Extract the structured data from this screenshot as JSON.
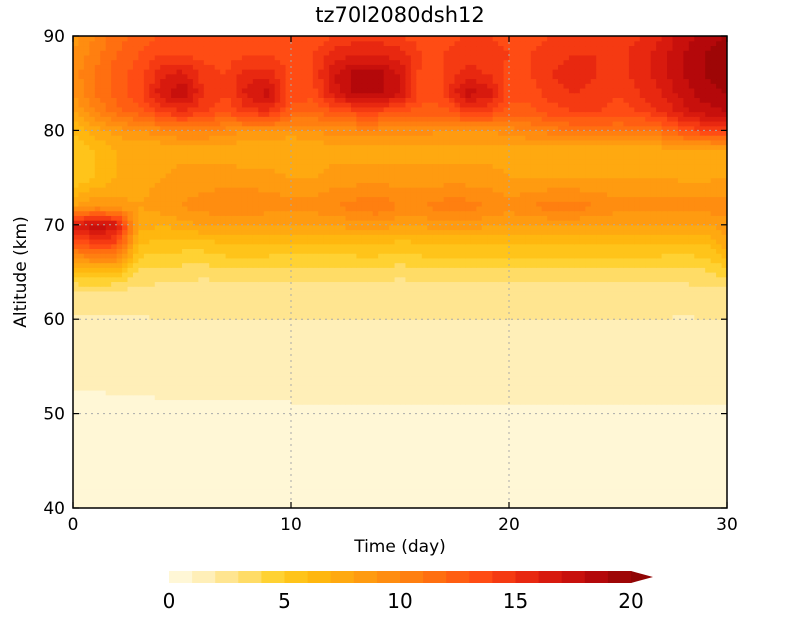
{
  "chart_data": {
    "type": "heatmap",
    "title": "tz70l2080dsh12",
    "xlabel": "Time (day)",
    "ylabel": "Altitude (km)",
    "xlim": [
      0,
      30
    ],
    "ylim": [
      40,
      90
    ],
    "xticks": [
      0,
      10,
      20,
      30
    ],
    "yticks": [
      40,
      50,
      60,
      70,
      80,
      90
    ],
    "grid": true,
    "time_days": [
      0,
      1,
      2,
      3,
      4,
      5,
      6,
      7,
      8,
      9,
      10,
      11,
      12,
      13,
      14,
      15,
      16,
      17,
      18,
      19,
      20,
      21,
      22,
      23,
      24,
      25,
      26,
      27,
      28,
      29,
      30
    ],
    "altitude_km": [
      40,
      45,
      50,
      55,
      60,
      63,
      65,
      68,
      70,
      72,
      75,
      78,
      80,
      82,
      84,
      86,
      88,
      90
    ],
    "values": [
      [
        0.5,
        0.5,
        0.5,
        0.5,
        0.5,
        0.5,
        0.5,
        0.5,
        0.5,
        0.5,
        0.5,
        0.5,
        0.5,
        0.5,
        0.5,
        0.5,
        0.5,
        0.5,
        0.5,
        0.5,
        0.5,
        0.5,
        0.5,
        0.5,
        0.5,
        0.5,
        0.5,
        0.5,
        0.5,
        0.5,
        0.5
      ],
      [
        0.6,
        0.6,
        0.6,
        0.6,
        0.6,
        0.6,
        0.6,
        0.6,
        0.6,
        0.6,
        0.6,
        0.6,
        0.6,
        0.6,
        0.6,
        0.6,
        0.6,
        0.6,
        0.6,
        0.6,
        0.6,
        0.6,
        0.6,
        0.6,
        0.6,
        0.6,
        0.6,
        0.6,
        0.6,
        0.6,
        0.6
      ],
      [
        0.8,
        0.8,
        0.8,
        0.8,
        0.8,
        0.8,
        0.8,
        0.8,
        0.8,
        0.8,
        0.8,
        0.8,
        0.8,
        0.8,
        0.8,
        0.8,
        0.8,
        0.8,
        0.8,
        0.8,
        0.8,
        0.8,
        0.8,
        0.8,
        0.8,
        0.8,
        0.8,
        0.8,
        0.8,
        0.8,
        0.8
      ],
      [
        1.2,
        1.2,
        1.3,
        1.3,
        1.4,
        1.4,
        1.5,
        1.4,
        1.4,
        1.4,
        1.6,
        1.6,
        1.6,
        1.6,
        1.6,
        1.6,
        1.6,
        1.6,
        1.6,
        1.6,
        1.7,
        1.7,
        1.7,
        1.7,
        1.6,
        1.6,
        1.7,
        1.7,
        1.7,
        1.7,
        1.7
      ],
      [
        1.8,
        1.8,
        1.9,
        1.9,
        2.0,
        2.0,
        2.0,
        2.0,
        2.0,
        2.0,
        2.0,
        2.0,
        2.0,
        2.0,
        2.0,
        2.0,
        2.0,
        2.0,
        2.0,
        2.0,
        2.0,
        2.0,
        2.0,
        2.0,
        2.0,
        2.0,
        2.0,
        2.0,
        1.9,
        2.0,
        2.0
      ],
      [
        3.0,
        3.0,
        2.8,
        2.6,
        2.6,
        2.6,
        2.2,
        2.4,
        2.6,
        2.6,
        2.6,
        2.6,
        2.6,
        2.6,
        2.6,
        2.2,
        2.6,
        2.6,
        2.6,
        2.6,
        2.6,
        2.6,
        2.6,
        2.6,
        2.6,
        2.6,
        2.6,
        2.6,
        2.6,
        2.6,
        2.8
      ],
      [
        5.5,
        6.0,
        5.8,
        3.8,
        3.6,
        3.5,
        3.4,
        3.6,
        3.6,
        3.6,
        3.6,
        3.6,
        3.6,
        3.6,
        3.6,
        3.4,
        3.6,
        3.6,
        3.6,
        3.6,
        3.6,
        3.6,
        3.6,
        3.6,
        3.6,
        3.6,
        3.6,
        3.6,
        3.6,
        3.8,
        4.5
      ],
      [
        12.5,
        14.0,
        13.5,
        6.0,
        5.5,
        5.5,
        5.5,
        6.0,
        6.0,
        6.0,
        5.8,
        5.8,
        5.8,
        6.0,
        6.0,
        5.5,
        6.0,
        6.0,
        6.0,
        6.0,
        6.0,
        6.0,
        6.0,
        6.0,
        6.0,
        6.0,
        6.0,
        6.0,
        5.8,
        6.0,
        7.5
      ],
      [
        16.5,
        18.0,
        17.0,
        7.5,
        7.0,
        7.5,
        8.0,
        8.0,
        8.0,
        7.8,
        7.8,
        8.0,
        8.0,
        8.5,
        8.5,
        8.0,
        8.2,
        8.5,
        8.5,
        8.2,
        8.0,
        8.0,
        8.2,
        8.2,
        8.0,
        8.0,
        8.0,
        8.0,
        8.0,
        8.0,
        8.5
      ],
      [
        8.0,
        9.0,
        8.5,
        8.0,
        8.5,
        9.0,
        9.5,
        10.0,
        10.0,
        9.5,
        9.5,
        9.5,
        10.0,
        10.5,
        11.0,
        10.0,
        10.0,
        10.5,
        10.5,
        10.0,
        9.5,
        10.0,
        10.5,
        10.5,
        10.0,
        9.5,
        9.5,
        9.5,
        9.5,
        9.5,
        9.5
      ],
      [
        5.0,
        6.0,
        7.0,
        7.5,
        8.0,
        8.5,
        8.5,
        8.5,
        8.5,
        8.5,
        8.0,
        8.0,
        8.5,
        8.5,
        8.5,
        8.5,
        8.5,
        8.5,
        8.5,
        8.5,
        8.0,
        8.0,
        8.0,
        8.0,
        8.0,
        8.0,
        8.0,
        8.0,
        7.8,
        7.8,
        8.0
      ],
      [
        5.0,
        6.0,
        7.0,
        7.0,
        7.0,
        7.5,
        7.5,
        7.5,
        7.0,
        7.0,
        7.0,
        7.0,
        7.5,
        7.5,
        7.5,
        7.5,
        7.5,
        7.5,
        7.5,
        7.5,
        7.5,
        7.5,
        7.5,
        7.5,
        7.5,
        7.5,
        7.5,
        7.5,
        7.5,
        7.5,
        7.5
      ],
      [
        6.0,
        7.5,
        8.5,
        9.0,
        9.5,
        10.0,
        10.0,
        9.5,
        9.0,
        9.0,
        8.5,
        9.0,
        9.5,
        9.5,
        9.5,
        9.5,
        9.5,
        9.0,
        9.0,
        9.0,
        9.5,
        10.0,
        10.5,
        11.0,
        11.0,
        11.0,
        11.0,
        11.5,
        13.0,
        14.0,
        14.5
      ],
      [
        8.0,
        10.0,
        11.5,
        12.5,
        14.0,
        15.0,
        14.0,
        13.0,
        14.5,
        15.0,
        12.5,
        12.0,
        13.0,
        13.5,
        13.5,
        13.0,
        12.5,
        12.5,
        14.0,
        14.0,
        12.5,
        12.5,
        13.5,
        14.0,
        14.0,
        13.5,
        14.0,
        15.0,
        16.5,
        17.5,
        18.0
      ],
      [
        9.0,
        11.0,
        12.5,
        13.5,
        16.5,
        18.0,
        15.0,
        14.0,
        16.5,
        17.5,
        13.5,
        13.5,
        16.5,
        18.5,
        18.5,
        17.0,
        13.5,
        14.0,
        17.5,
        17.0,
        13.5,
        13.5,
        14.5,
        15.0,
        14.5,
        14.0,
        15.0,
        16.0,
        17.5,
        18.5,
        19.0
      ],
      [
        9.5,
        11.0,
        12.5,
        13.5,
        15.5,
        16.5,
        14.5,
        14.0,
        15.5,
        15.5,
        13.5,
        14.0,
        17.0,
        18.5,
        18.5,
        17.0,
        13.5,
        14.0,
        15.5,
        15.0,
        13.5,
        14.0,
        15.0,
        15.5,
        15.0,
        14.5,
        15.5,
        16.5,
        18.0,
        19.0,
        19.5
      ],
      [
        9.0,
        10.5,
        12.0,
        13.0,
        14.0,
        14.0,
        13.5,
        13.5,
        14.0,
        14.0,
        13.5,
        14.0,
        15.5,
        16.0,
        16.0,
        15.5,
        14.0,
        14.0,
        14.5,
        14.5,
        14.0,
        14.0,
        14.5,
        15.0,
        15.0,
        14.5,
        15.5,
        16.5,
        18.0,
        19.0,
        19.5
      ],
      [
        8.5,
        10.0,
        11.5,
        12.5,
        13.0,
        13.0,
        13.0,
        13.0,
        13.0,
        13.0,
        13.0,
        13.0,
        14.0,
        14.5,
        14.5,
        14.0,
        13.5,
        13.5,
        14.0,
        14.0,
        13.5,
        13.5,
        14.0,
        14.5,
        14.5,
        14.5,
        15.0,
        16.0,
        17.5,
        18.5,
        19.0
      ]
    ],
    "colorbar": {
      "ticks": [
        0,
        5,
        10,
        15,
        20
      ],
      "levels": [
        0,
        1,
        2,
        3,
        4,
        5,
        6,
        7,
        8,
        9,
        10,
        11,
        12,
        13,
        14,
        15,
        16,
        17,
        18,
        19,
        20
      ],
      "colors": [
        "#fff7d6",
        "#ffefb8",
        "#ffe590",
        "#ffdc66",
        "#ffd233",
        "#ffc41a",
        "#ffb70f",
        "#ffa910",
        "#ff9b10",
        "#ff8d10",
        "#ff7f10",
        "#ff6f10",
        "#ff5e12",
        "#ff4c14",
        "#f53a12",
        "#e82810",
        "#d81a0e",
        "#c8100c",
        "#b4080a",
        "#9e0606",
        "#900505"
      ],
      "extend": "max"
    },
    "colors": {
      "gridline": "#aaaaaa",
      "frame": "#000000"
    }
  }
}
